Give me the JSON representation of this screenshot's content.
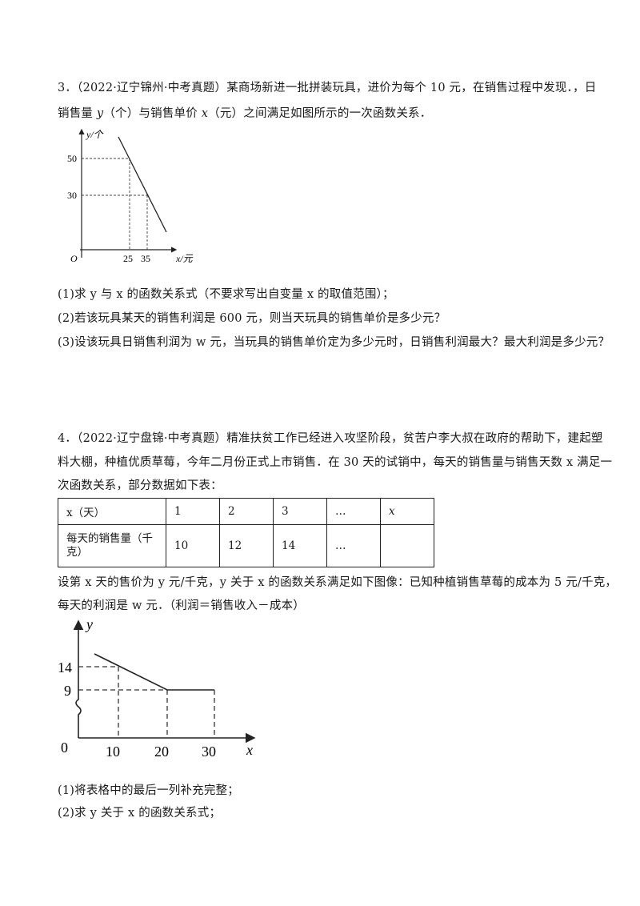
{
  "q3": {
    "line1": "3．（2022·辽宁锦州·中考真题）某商场新进一批拼装玩具，进价为每个 10 元，在销售过程中发现．，日",
    "line2_a": "销售量 ",
    "line2_y": "y",
    "line2_b": "（个）与销售单价 ",
    "line2_x": "x",
    "line2_c": "（元）之间满足如图所示的一次函数关系．",
    "graph": {
      "y_label": "y/个",
      "x_label": "x/元",
      "origin": "O",
      "y_ticks": [
        "50",
        "30"
      ],
      "x_ticks": [
        "25",
        "35"
      ]
    },
    "sub1": "(1)求 y 与 x 的函数关系式（不要求写出自变量 x 的取值范围）；",
    "sub2": "(2)若该玩具某天的销售利润是 600 元，则当天玩具的销售单价是多少元？",
    "sub3": "(3)设该玩具日销售利润为 w 元，当玩具的销售单价定为多少元时，日销售利润最大？最大利润是多少元？"
  },
  "q4": {
    "line1": "4．（2022·辽宁盘锦·中考真题）精准扶贫工作已经进入攻坚阶段，贫苦户李大叔在政府的帮助下，建起塑",
    "line2": "料大棚，种植优质草莓，今年二月份正式上市销售．在 30 天的试销中，每天的销售量与销售天数 x 满足一",
    "line3": "次函数关系，部分数据如下表：",
    "table": {
      "row1": [
        "x（天）",
        "1",
        "2",
        "3",
        "…",
        "x"
      ],
      "row2": [
        "每天的销售量（千克）",
        "10",
        "12",
        "14",
        "…",
        ""
      ]
    },
    "line4": "设第 x 天的售价为 y 元/千克，y 关于 x 的函数关系满足如下图像：已知种植销售草莓的成本为 5 元/千克，",
    "line5": "每天的利润是 w 元．（利润＝销售收入－成本）",
    "graph": {
      "y_label": "y",
      "x_label": "x",
      "origin": "0",
      "y_ticks": [
        "14",
        "9"
      ],
      "x_ticks": [
        "10",
        "20",
        "30"
      ]
    },
    "sub1": "(1)将表格中的最后一列补充完整；",
    "sub2": "(2)求 y 关于 x 的函数关系式；"
  }
}
